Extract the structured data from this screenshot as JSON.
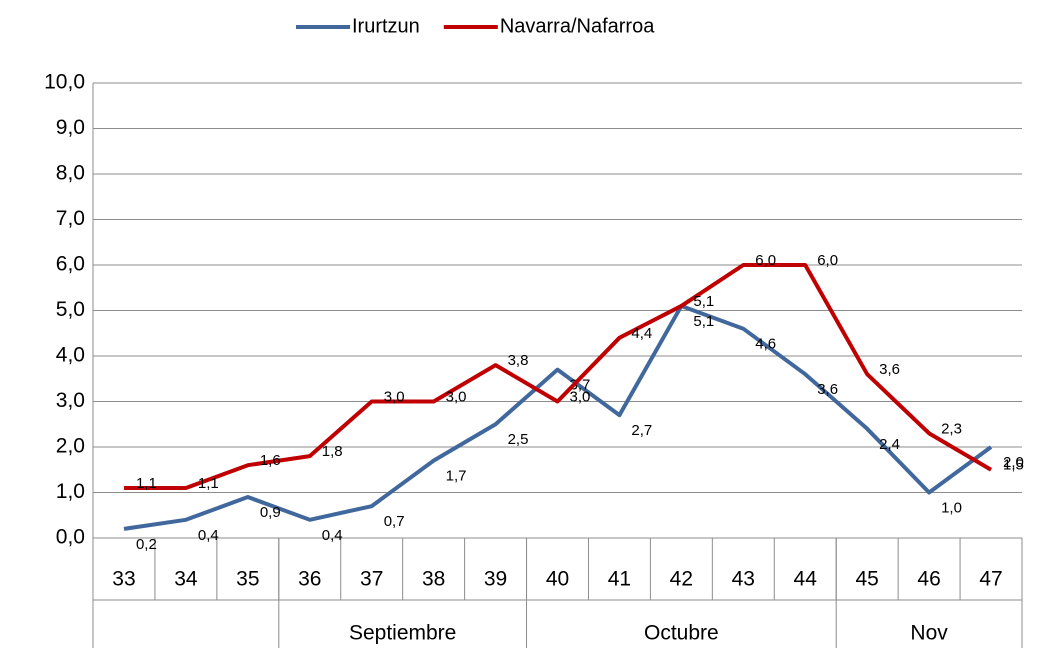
{
  "chart_data": {
    "type": "line",
    "categories": [
      "33",
      "34",
      "35",
      "36",
      "37",
      "38",
      "39",
      "40",
      "41",
      "42",
      "43",
      "44",
      "45",
      "46",
      "47"
    ],
    "month_groups": [
      {
        "label": null,
        "from": "33",
        "to": "35"
      },
      {
        "label": "Septiembre",
        "from": "36",
        "to": "39"
      },
      {
        "label": "Octubre",
        "from": "40",
        "to": "44"
      },
      {
        "label": "Nov",
        "from": "45",
        "to": "47"
      }
    ],
    "series": [
      {
        "name": "Irurtzun",
        "color": "#41689c",
        "values": [
          0.2,
          0.4,
          0.9,
          0.4,
          0.7,
          1.7,
          2.5,
          3.7,
          2.7,
          5.1,
          4.6,
          3.6,
          2.4,
          1.0,
          2.0
        ],
        "value_labels": [
          "0,2",
          "0,4",
          "0,9",
          "0,4",
          "0,7",
          "1,7",
          "2,5",
          "3,7",
          "2,7",
          "5,1",
          "4,6",
          "3,6",
          "2,4",
          "1,0",
          "2,0"
        ]
      },
      {
        "name": "Navarra/Nafarroa",
        "color": "#c00000",
        "values": [
          1.1,
          1.1,
          1.6,
          1.8,
          3.0,
          3.0,
          3.8,
          3.0,
          4.4,
          5.1,
          6.0,
          6.0,
          3.6,
          2.3,
          1.5
        ],
        "value_labels": [
          "1,1",
          "1,1",
          "1,6",
          "1,8",
          "3,0",
          "3,0",
          "3,8",
          "3,0",
          "4,4",
          "5,1",
          "6,0",
          "6,0",
          "3,6",
          "2,3",
          "1,5"
        ]
      }
    ],
    "ylim": [
      0,
      10
    ],
    "yticks": [
      {
        "value": 0,
        "label": "0,0"
      },
      {
        "value": 1,
        "label": "1,0"
      },
      {
        "value": 2,
        "label": "2,0"
      },
      {
        "value": 3,
        "label": "3,0"
      },
      {
        "value": 4,
        "label": "4,0"
      },
      {
        "value": 5,
        "label": "5,0"
      },
      {
        "value": 6,
        "label": "6,0"
      },
      {
        "value": 7,
        "label": "7,0"
      },
      {
        "value": 8,
        "label": "8,0"
      },
      {
        "value": 9,
        "label": "9,0"
      },
      {
        "value": 10,
        "label": "10,0"
      }
    ],
    "grid": true,
    "legend": "top"
  }
}
